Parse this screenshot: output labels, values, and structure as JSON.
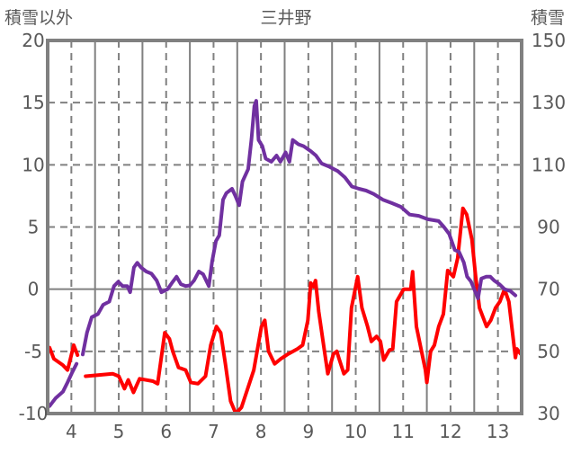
{
  "chart_data": {
    "type": "line",
    "title": "三井野",
    "ylabel": "積雪以外",
    "y2label": "積雪",
    "xlim": [
      3.5,
      13.5
    ],
    "ylim": [
      -10,
      20
    ],
    "y2lim": [
      30,
      150
    ],
    "xticks": [
      "4",
      "5",
      "6",
      "7",
      "8",
      "9",
      "10",
      "11",
      "12",
      "13"
    ],
    "xtick_values": [
      4,
      5,
      6,
      7,
      8,
      9,
      10,
      11,
      12,
      13
    ],
    "yticks": [
      "20",
      "15",
      "10",
      "5",
      "0",
      "-5",
      "-10"
    ],
    "ytick_values": [
      20,
      15,
      10,
      5,
      0,
      -5,
      -10
    ],
    "y2ticks": [
      "150",
      "130",
      "110",
      "90",
      "70",
      "50",
      "30"
    ],
    "y2tick_values": [
      150,
      130,
      110,
      90,
      70,
      50,
      30
    ],
    "grid": true,
    "series": [
      {
        "name": "積雪以外",
        "axis": "left",
        "color": "#ff0000",
        "points": [
          [
            3.54,
            -4.7
          ],
          [
            3.63,
            -5.6
          ],
          [
            3.82,
            -6.1
          ],
          [
            3.92,
            -6.5
          ],
          [
            3.98,
            -5.6
          ],
          [
            4.05,
            -4.5
          ],
          [
            4.13,
            -5.3
          ],
          null,
          [
            4.3,
            -7.0
          ],
          [
            4.87,
            -6.8
          ],
          [
            5.0,
            -7.0
          ],
          [
            5.12,
            -8.0
          ],
          [
            5.2,
            -7.3
          ],
          [
            5.31,
            -8.3
          ],
          [
            5.44,
            -7.2
          ],
          [
            5.72,
            -7.4
          ],
          [
            5.82,
            -7.6
          ],
          [
            5.97,
            -3.5
          ],
          [
            6.07,
            -4.0
          ],
          [
            6.14,
            -5.0
          ],
          [
            6.26,
            -6.3
          ],
          [
            6.41,
            -6.5
          ],
          [
            6.52,
            -7.5
          ],
          [
            6.67,
            -7.6
          ],
          [
            6.83,
            -7.0
          ],
          [
            6.94,
            -4.5
          ],
          [
            7.06,
            -3.0
          ],
          [
            7.15,
            -3.5
          ],
          [
            7.25,
            -6.0
          ],
          [
            7.36,
            -9.0
          ],
          [
            7.47,
            -10.0
          ],
          [
            7.59,
            -9.5
          ],
          [
            7.72,
            -8.0
          ],
          [
            7.85,
            -6.5
          ],
          [
            8.01,
            -3.0
          ],
          [
            8.08,
            -2.5
          ],
          [
            8.16,
            -5.0
          ],
          [
            8.29,
            -6.0
          ],
          [
            8.42,
            -5.6
          ],
          [
            8.58,
            -5.2
          ],
          [
            8.77,
            -4.8
          ],
          [
            8.88,
            -4.5
          ],
          [
            8.99,
            -2.5
          ],
          [
            9.05,
            0.5
          ],
          [
            9.11,
            0.2
          ],
          [
            9.15,
            0.7
          ],
          [
            9.22,
            -1.8
          ],
          [
            9.34,
            -5.0
          ],
          [
            9.41,
            -6.8
          ],
          [
            9.53,
            -5.2
          ],
          [
            9.6,
            -5.0
          ],
          [
            9.64,
            -5.5
          ],
          [
            9.75,
            -6.8
          ],
          [
            9.83,
            -6.5
          ],
          [
            9.91,
            -1.5
          ],
          [
            10.04,
            1.0
          ],
          [
            10.13,
            -1.5
          ],
          [
            10.25,
            -3.0
          ],
          [
            10.33,
            -4.2
          ],
          [
            10.44,
            -3.8
          ],
          [
            10.52,
            -4.2
          ],
          [
            10.59,
            -5.7
          ],
          [
            10.71,
            -4.9
          ],
          [
            10.78,
            -4.8
          ],
          [
            10.86,
            -1.0
          ],
          [
            11.01,
            0.0
          ],
          [
            11.16,
            0.0
          ],
          [
            11.2,
            1.4
          ],
          [
            11.28,
            -3.0
          ],
          [
            11.47,
            -6.5
          ],
          [
            11.5,
            -7.5
          ],
          [
            11.58,
            -5.0
          ],
          [
            11.66,
            -4.5
          ],
          [
            11.75,
            -3.0
          ],
          [
            11.85,
            -2.0
          ],
          [
            11.94,
            1.5
          ],
          [
            12.06,
            1.0
          ],
          [
            12.15,
            2.5
          ],
          [
            12.26,
            6.5
          ],
          [
            12.34,
            6.0
          ],
          [
            12.45,
            4.0
          ],
          [
            12.53,
            1.0
          ],
          [
            12.61,
            -1.5
          ],
          [
            12.76,
            -3.0
          ],
          [
            12.85,
            -2.5
          ],
          [
            12.95,
            -1.5
          ],
          [
            13.04,
            -1.0
          ],
          [
            13.14,
            0.0
          ],
          [
            13.23,
            -1.0
          ],
          [
            13.37,
            -5.5
          ],
          [
            13.4,
            -4.8
          ],
          [
            13.48,
            -5.2
          ]
        ]
      },
      {
        "name": "積雪",
        "axis": "right",
        "color": "#7030a0",
        "points": [
          [
            3.54,
            32.4
          ],
          [
            3.67,
            35
          ],
          [
            3.82,
            37
          ],
          [
            3.92,
            40
          ],
          [
            4.01,
            43
          ],
          [
            4.11,
            46
          ],
          null,
          [
            4.24,
            49
          ],
          [
            4.33,
            56
          ],
          [
            4.43,
            61
          ],
          [
            4.56,
            62
          ],
          [
            4.67,
            65
          ],
          [
            4.8,
            66
          ],
          [
            4.9,
            71
          ],
          [
            4.99,
            72.4
          ],
          [
            5.08,
            71
          ],
          [
            5.18,
            71
          ],
          [
            5.24,
            69
          ],
          [
            5.32,
            77
          ],
          [
            5.39,
            78.5
          ],
          [
            5.47,
            77
          ],
          [
            5.58,
            75.7
          ],
          [
            5.69,
            75
          ],
          [
            5.8,
            72.8
          ],
          [
            5.9,
            69
          ],
          [
            6.03,
            70
          ],
          [
            6.14,
            72.4
          ],
          [
            6.22,
            74
          ],
          [
            6.31,
            71.6
          ],
          [
            6.41,
            71
          ],
          [
            6.5,
            71.2
          ],
          [
            6.59,
            72.8
          ],
          [
            6.69,
            75.7
          ],
          [
            6.78,
            74.8
          ],
          [
            6.9,
            71
          ],
          [
            6.97,
            79
          ],
          [
            7.05,
            85.5
          ],
          [
            7.12,
            87.3
          ],
          [
            7.2,
            98.8
          ],
          [
            7.27,
            100.9
          ],
          [
            7.39,
            102.3
          ],
          [
            7.46,
            100
          ],
          [
            7.54,
            97
          ],
          [
            7.61,
            104.6
          ],
          [
            7.73,
            108.6
          ],
          [
            7.8,
            118.2
          ],
          [
            7.86,
            128.9
          ],
          [
            7.9,
            130.6
          ],
          [
            7.95,
            118
          ],
          [
            8.03,
            116
          ],
          [
            8.1,
            112
          ],
          [
            8.22,
            111
          ],
          [
            8.33,
            113
          ],
          [
            8.41,
            111
          ],
          [
            8.52,
            114
          ],
          [
            8.6,
            111
          ],
          [
            8.67,
            118
          ],
          [
            8.79,
            116.6
          ],
          [
            8.9,
            116
          ],
          [
            9.05,
            114.4
          ],
          [
            9.16,
            113
          ],
          [
            9.28,
            110.4
          ],
          [
            9.43,
            109.5
          ],
          [
            9.62,
            108
          ],
          [
            9.77,
            106
          ],
          [
            9.92,
            103
          ],
          [
            10.07,
            102.3
          ],
          [
            10.22,
            101.7
          ],
          [
            10.38,
            100.6
          ],
          [
            10.57,
            98.8
          ],
          [
            10.76,
            97.7
          ],
          [
            10.95,
            96.5
          ],
          [
            11.14,
            94
          ],
          [
            11.33,
            93.6
          ],
          [
            11.52,
            92.5
          ],
          [
            11.75,
            91.9
          ],
          [
            11.86,
            90
          ],
          [
            11.97,
            87.8
          ],
          [
            12.09,
            82.6
          ],
          [
            12.18,
            82
          ],
          [
            12.28,
            78.6
          ],
          [
            12.35,
            74
          ],
          [
            12.43,
            72.5
          ],
          [
            12.5,
            70
          ],
          [
            12.58,
            67
          ],
          [
            12.65,
            73.4
          ],
          [
            12.75,
            74
          ],
          [
            12.84,
            74
          ],
          [
            12.92,
            72.8
          ],
          [
            13.03,
            71.6
          ],
          [
            13.14,
            70
          ],
          [
            13.26,
            69.4
          ],
          [
            13.37,
            68
          ]
        ]
      }
    ]
  }
}
